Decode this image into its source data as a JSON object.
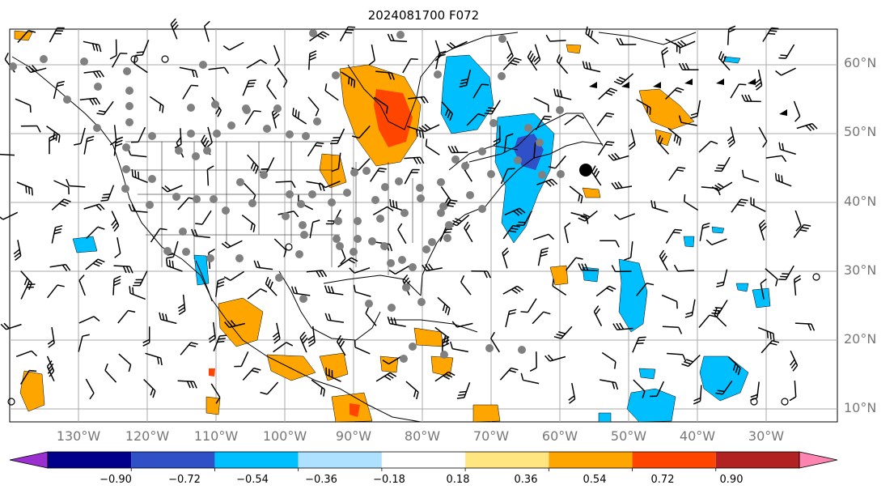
{
  "title": "2024081700 F072",
  "lat_labels": [
    "60°N",
    "50°N",
    "40°N",
    "30°N",
    "20°N",
    "10°N"
  ],
  "lon_labels": [
    "130°W",
    "120°W",
    "110°W",
    "100°W",
    "90°W",
    "80°W",
    "70°W",
    "60°W",
    "50°W",
    "40°W",
    "30°W"
  ],
  "colorbar": {
    "labels": [
      "−0.90",
      "−0.72",
      "−0.54",
      "−0.36",
      "−0.18",
      "0.18",
      "0.36",
      "0.54",
      "0.72",
      "0.90"
    ],
    "colors": [
      "#9b30d0",
      "#00008b",
      "#3050c8",
      "#00bfff",
      "#aee0ff",
      "#ffffff",
      "#ffe680",
      "#ffa500",
      "#ff4500",
      "#b22222",
      "#ff85b0"
    ]
  },
  "colors": {
    "positive_mid": "#ffa500",
    "positive_high": "#ff4500",
    "negative_mid": "#00bfff",
    "negative_high": "#3050c8",
    "station_dot": "#808080",
    "grid": "#aaaaaa"
  }
}
